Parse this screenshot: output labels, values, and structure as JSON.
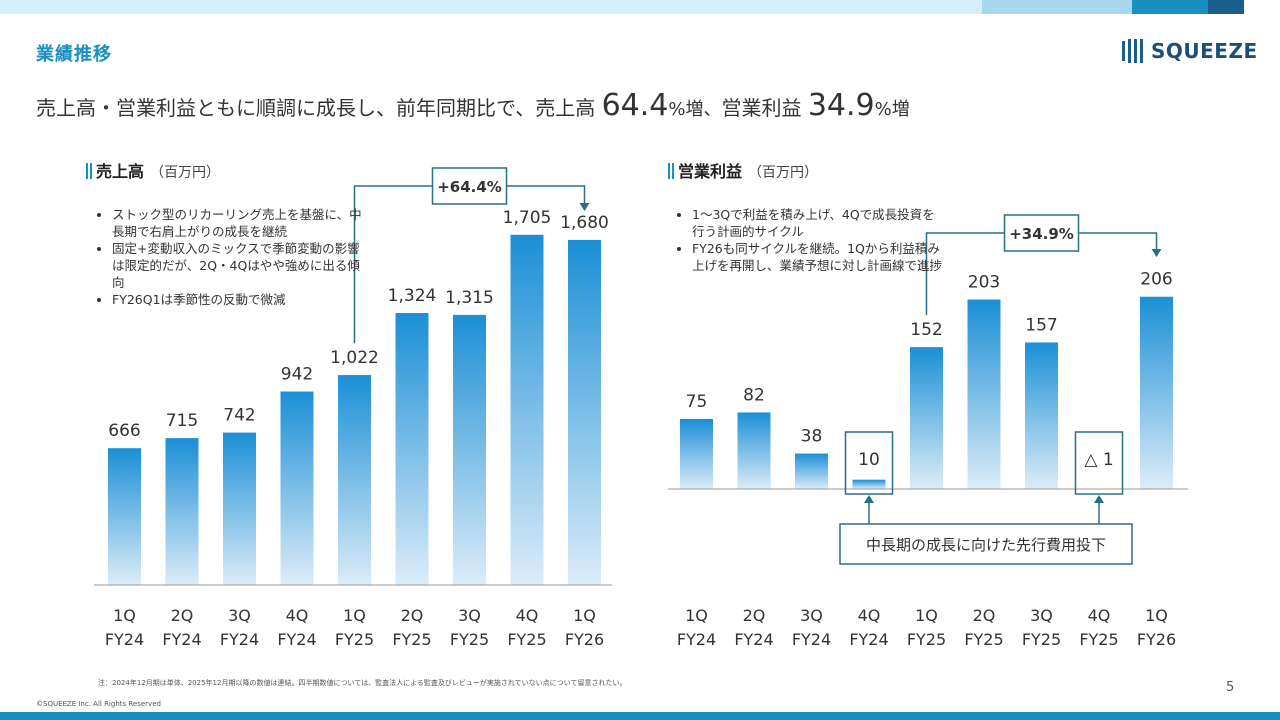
{
  "section_title": "業績推移",
  "logo_text": "SQUEEZE",
  "headline": {
    "prefix": "売上高・営業利益ともに順調に成長し、前年同期比で、売上高 ",
    "sales_growth": "64.4",
    "pct1": "%増、",
    "mid": "営業利益 ",
    "profit_growth": "34.9",
    "pct2": "%増"
  },
  "sales_chart": {
    "title": "売上高",
    "unit": "（百万円）",
    "notes": [
      "ストック型のリカーリング売上を基盤に、中長期で右肩上がりの成長を継続",
      "固定+変動収入のミックスで季節変動の影響は限定的だが、2Q・4Qはやや強めに出る傾向",
      "FY26Q1は季節性の反動で微減"
    ]
  },
  "profit_chart": {
    "title": "営業利益",
    "unit": "（百万円）",
    "notes": [
      "1〜3Qで利益を積み上げ、4Qで成長投資を行う計画的サイクル",
      "FY26も同サイクルを継続。1Qから利益積み上げを再開し、業績予想に対し計画線で進捗"
    ]
  },
  "chart_data": [
    {
      "type": "bar",
      "title": "売上高",
      "ylabel": "（百万円）",
      "categories": [
        [
          "1Q",
          "FY24"
        ],
        [
          "2Q",
          "FY24"
        ],
        [
          "3Q",
          "FY24"
        ],
        [
          "4Q",
          "FY24"
        ],
        [
          "1Q",
          "FY25"
        ],
        [
          "2Q",
          "FY25"
        ],
        [
          "3Q",
          "FY25"
        ],
        [
          "4Q",
          "FY25"
        ],
        [
          "1Q",
          "FY26"
        ]
      ],
      "values": [
        666,
        715,
        742,
        942,
        1022,
        1324,
        1315,
        1705,
        1680
      ],
      "labels": [
        "666",
        "715",
        "742",
        "942",
        "1,022",
        "1,324",
        "1,315",
        "1,705",
        "1,680"
      ],
      "ylim": [
        0,
        1850
      ],
      "annotation": "+64.4%",
      "annotation_from": 4,
      "annotation_to": 8,
      "grid": false
    },
    {
      "type": "bar",
      "title": "営業利益",
      "ylabel": "（百万円）",
      "categories": [
        [
          "1Q",
          "FY24"
        ],
        [
          "2Q",
          "FY24"
        ],
        [
          "3Q",
          "FY24"
        ],
        [
          "4Q",
          "FY24"
        ],
        [
          "1Q",
          "FY25"
        ],
        [
          "2Q",
          "FY25"
        ],
        [
          "3Q",
          "FY25"
        ],
        [
          "4Q",
          "FY25"
        ],
        [
          "1Q",
          "FY26"
        ]
      ],
      "values": [
        75,
        82,
        38,
        10,
        152,
        203,
        157,
        -1,
        206
      ],
      "labels": [
        "75",
        "82",
        "38",
        "10",
        "152",
        "203",
        "157",
        "△ 1",
        "206"
      ],
      "ylim": [
        0,
        225
      ],
      "annotation": "+34.9%",
      "annotation_from": 4,
      "annotation_to": 8,
      "highlight_indices": [
        3,
        7
      ],
      "callout": "中長期の成長に向けた先行費用投下",
      "grid": false
    }
  ],
  "colors": {
    "accent": "#1a8fc0",
    "bar_top": "#1b8fd6",
    "bar_bottom": "#dcecf8",
    "dark_teal": "#2a6f8a",
    "top_strip": [
      "#d6eef8",
      "#a8d8f0",
      "#1a8fc0",
      "#1b5e8c"
    ]
  },
  "footnote": "注：2024年12月期は単体、2025年12月期以降の数値は連結。四半期数値については、監査法人による監査及びレビューが実施されていない点について留意されたい。",
  "copyright": "©SQUEEZE Inc. All Rights Reserved",
  "page_number": "5"
}
